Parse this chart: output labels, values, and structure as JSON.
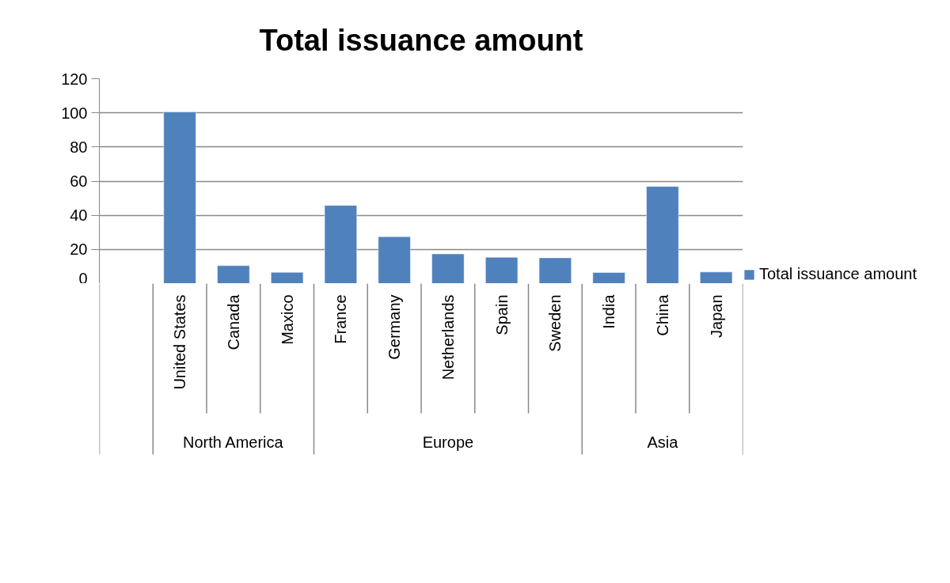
{
  "chart_data": {
    "type": "bar",
    "title": "Total issuance amount",
    "categories": [
      null,
      "United States",
      "Canada",
      "Maxico",
      "France",
      "Germany",
      "Netherlands",
      "Spain",
      "Sweden",
      "India",
      "China",
      "Japan"
    ],
    "series": [
      {
        "name": "Total issuance amount",
        "color": "#4f81bd",
        "values": [
          null,
          100.5,
          10.5,
          6.6,
          45.8,
          27.5,
          17.4,
          15.4,
          15.1,
          6.5,
          56.9,
          6.8
        ]
      }
    ],
    "annotations": [
      "North America",
      "Europe",
      "Asia"
    ],
    "ylim": [
      0,
      120
    ],
    "yticks": [
      0,
      20,
      40,
      60,
      80,
      100,
      120
    ],
    "grid": "y",
    "legend": "right"
  }
}
